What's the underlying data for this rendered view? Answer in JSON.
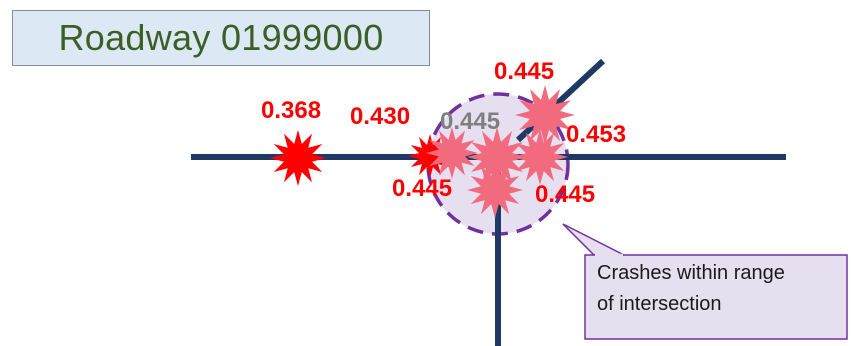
{
  "title": "Roadway 01999000",
  "crashes": [
    {
      "value": "0.368",
      "style": "outside"
    },
    {
      "value": "0.430",
      "style": "outside"
    },
    {
      "value": "0.445",
      "style": "inside"
    },
    {
      "value": "0.445",
      "style": "inside"
    },
    {
      "value": "0.453",
      "style": "inside"
    },
    {
      "value": "0.445",
      "style": "inside"
    },
    {
      "value": "0.445",
      "style": "inside"
    }
  ],
  "callout": {
    "line1": "Crashes within range",
    "line2": "of intersection"
  },
  "colors": {
    "road": "#1f3864",
    "crash_outside": "#ff0000",
    "crash_inside": "#f26a7e",
    "label": "#ff0000",
    "label_muted": "#7f7f7f",
    "range_circle_fill": "#e6dff0",
    "range_circle_stroke": "#7030a0",
    "callout_fill": "#e6dff0",
    "callout_stroke": "#7030a0"
  }
}
